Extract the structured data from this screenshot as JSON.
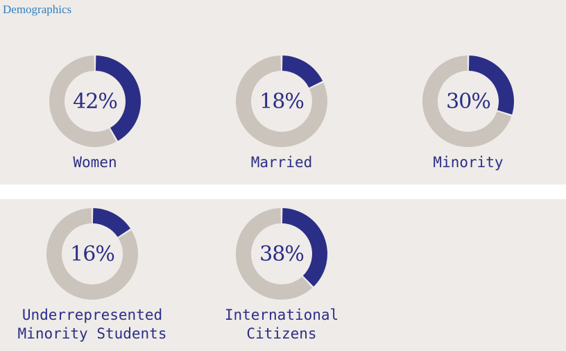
{
  "title": "Demographics",
  "colors": {
    "filled": "#2b2e86",
    "remaining": "#cbc4bc",
    "text": "#2b2e86",
    "title": "#2f7fc1"
  },
  "chart_data": {
    "type": "pie",
    "charts": [
      {
        "label": "Women",
        "value": 42,
        "display": "42%"
      },
      {
        "label": "Married",
        "value": 18,
        "display": "18%"
      },
      {
        "label": "Minority",
        "value": 30,
        "display": "30%"
      },
      {
        "label_lines": [
          "Underrepresented",
          "Minority Students"
        ],
        "value": 16,
        "display": "16%"
      },
      {
        "label_lines": [
          "International",
          "Citizens"
        ],
        "value": 38,
        "display": "38%"
      }
    ]
  }
}
